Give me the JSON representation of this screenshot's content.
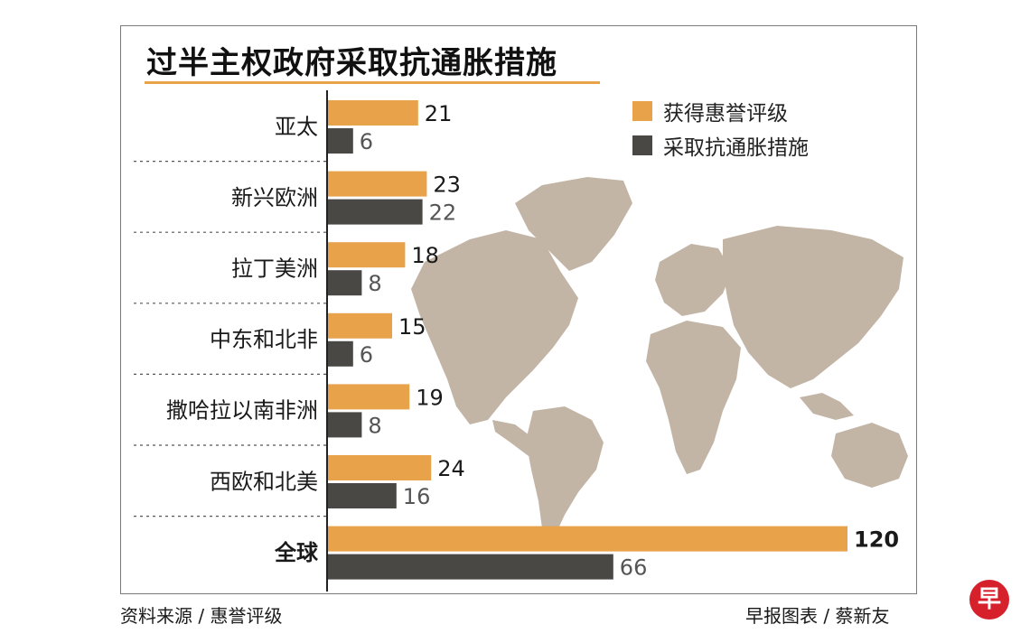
{
  "title": "过半主权政府采取抗通胀措施",
  "colors": {
    "accent": "#e8a24a",
    "dark": "#4a4844",
    "map": "#c2b5a6",
    "logo": "#d6202b"
  },
  "legend": [
    {
      "label": "获得惠誉评级",
      "color": "#e8a24a"
    },
    {
      "label": "采取抗通胀措施",
      "color": "#4a4844"
    }
  ],
  "chart_data": {
    "type": "bar",
    "orientation": "horizontal",
    "categories": [
      "亚太",
      "新兴欧洲",
      "拉丁美洲",
      "中东和北非",
      "撒哈拉以南非洲",
      "西欧和北美",
      "全球"
    ],
    "series": [
      {
        "name": "获得惠誉评级",
        "values": [
          21,
          23,
          18,
          15,
          19,
          24,
          120
        ]
      },
      {
        "name": "采取抗通胀措施",
        "values": [
          6,
          22,
          8,
          6,
          8,
          16,
          66
        ]
      }
    ],
    "legend_position": "top-right",
    "grid": false
  },
  "footer": {
    "source": "资料来源 / 惠誉评级",
    "credit": "早报图表 / 蔡新友"
  },
  "logo": {
    "glyph": "早"
  }
}
